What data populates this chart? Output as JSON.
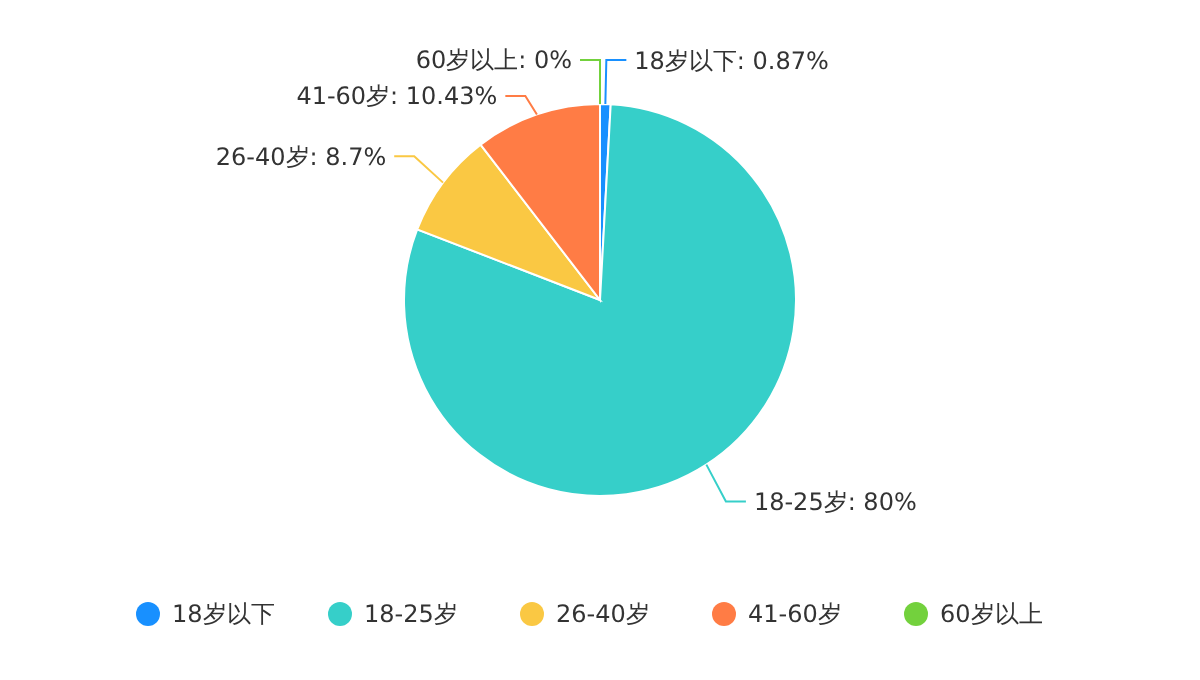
{
  "chart_data": {
    "type": "pie",
    "categories": [
      "18岁以下",
      "18-25岁",
      "26-40岁",
      "41-60岁",
      "60岁以上"
    ],
    "values": [
      0.87,
      80,
      8.7,
      10.43,
      0
    ],
    "value_labels": [
      "18岁以下: 0.87%",
      "18-25岁: 80%",
      "26-40岁: 8.7%",
      "41-60岁: 10.43%",
      "60岁以上: 0%"
    ],
    "colors": [
      "#1890ff",
      "#36cfc9",
      "#fac843",
      "#ff7c45",
      "#73d13d"
    ],
    "legend": "bottom"
  }
}
